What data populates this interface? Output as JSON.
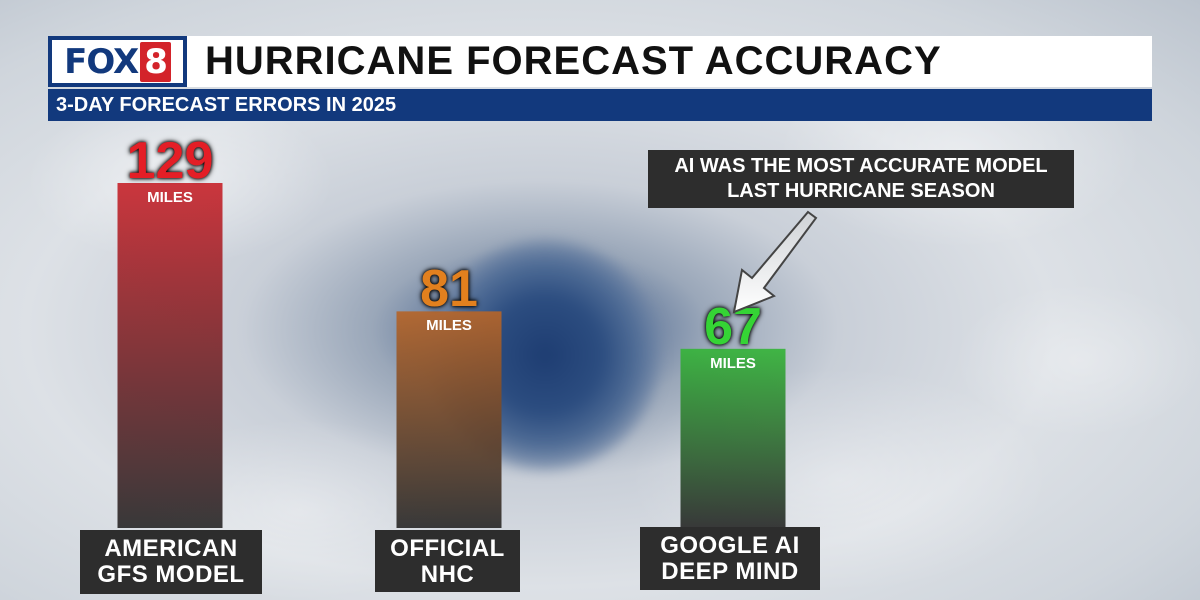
{
  "header": {
    "logo_text": "FOX",
    "logo_number": "8",
    "title": "HURRICANE FORECAST ACCURACY",
    "subtitle": "3-DAY FORECAST ERRORS IN 2025"
  },
  "callout": {
    "text": "AI WAS THE MOST ACCURATE MODEL\nLAST HURRICANE SEASON"
  },
  "chart_data": {
    "type": "bar",
    "title": "HURRICANE FORECAST ACCURACY",
    "subtitle": "3-DAY FORECAST ERRORS IN 2025",
    "unit": "MILES",
    "categories": [
      "AMERICAN\nGFS MODEL",
      "OFFICIAL\nNHC",
      "GOOGLE AI\nDEEP MIND"
    ],
    "values": [
      129,
      81,
      67
    ],
    "value_labels": [
      "129",
      "81",
      "67"
    ],
    "colors": [
      "#c8262e",
      "#b5652a",
      "#36b43a"
    ],
    "value_text_colors": [
      "#e41e26",
      "#e2801e",
      "#35d435"
    ],
    "ylim": [
      0,
      129
    ],
    "grid": false
  }
}
